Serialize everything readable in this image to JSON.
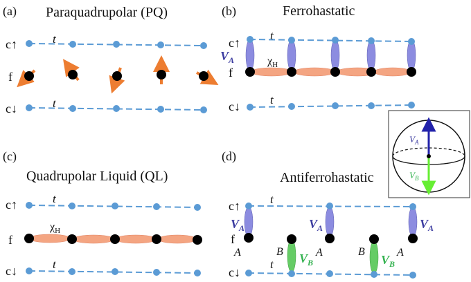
{
  "panels": {
    "a": {
      "tag": "(a)",
      "title": "Paraquadrupolar (PQ)",
      "rows": {
        "up": "c↑",
        "f": "f",
        "down": "c↓"
      },
      "hop": "t"
    },
    "b": {
      "tag": "(b)",
      "title": "Ferrohastatic",
      "rows": {
        "up": "c↑",
        "f": "f",
        "down": "c↓"
      },
      "hop": "t",
      "va": "V",
      "va_sub": "A",
      "chi": "χ",
      "chi_sub": "H"
    },
    "c": {
      "tag": "(c)",
      "title": "Quadrupolar Liquid (QL)",
      "rows": {
        "up": "c↑",
        "f": "f",
        "down": "c↓"
      },
      "hop": "t",
      "chi": "χ",
      "chi_sub": "H"
    },
    "d": {
      "tag": "(d)",
      "title": "Antiferrohastatic",
      "rows": {
        "up": "c↑",
        "f": "f",
        "down": "c↓"
      },
      "hop": "t",
      "va": "V",
      "va_sub": "A",
      "vb": "V",
      "vb_sub": "B",
      "site_a": "A",
      "site_b": "B"
    }
  },
  "sphere": {
    "va": "V",
    "va_sub": "A",
    "vb": "V",
    "vb_sub": "B"
  },
  "colors": {
    "chain": "#5b9bd5",
    "dot": "#5b9bd5",
    "spin": "#ed7d31",
    "chi_bond": "#f4a582",
    "va_bond": "#8c8ce0",
    "vb_bond": "#66cc66",
    "va_text": "#3c3ca0",
    "vb_text": "#33b24f"
  }
}
